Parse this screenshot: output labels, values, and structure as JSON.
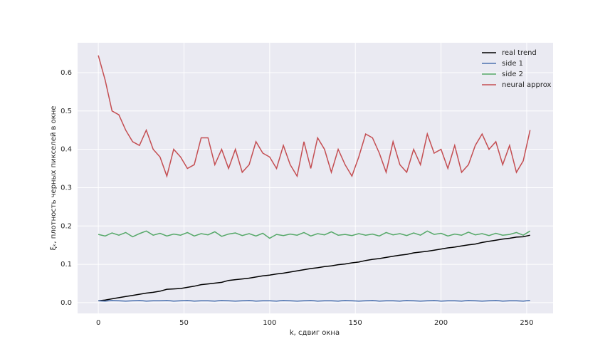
{
  "chart_data": {
    "type": "line",
    "xlabel": "k, сдвиг окна",
    "ylabel": "ξₖ, плотность черных пикселей в окне",
    "x": [
      0,
      4,
      8,
      12,
      16,
      20,
      24,
      28,
      32,
      36,
      40,
      44,
      48,
      52,
      56,
      60,
      64,
      68,
      72,
      76,
      80,
      84,
      88,
      92,
      96,
      100,
      104,
      108,
      112,
      116,
      120,
      124,
      128,
      132,
      136,
      140,
      144,
      148,
      152,
      156,
      160,
      164,
      168,
      172,
      176,
      180,
      184,
      188,
      192,
      196,
      200,
      204,
      208,
      212,
      216,
      220,
      224,
      228,
      232,
      236,
      240,
      244,
      248,
      252
    ],
    "series": [
      {
        "name": "real trend",
        "color": "#000000",
        "values": [
          0.005,
          0.007,
          0.01,
          0.013,
          0.016,
          0.019,
          0.022,
          0.025,
          0.027,
          0.03,
          0.035,
          0.036,
          0.037,
          0.04,
          0.043,
          0.047,
          0.049,
          0.051,
          0.053,
          0.058,
          0.06,
          0.062,
          0.064,
          0.067,
          0.07,
          0.072,
          0.075,
          0.077,
          0.08,
          0.083,
          0.086,
          0.089,
          0.091,
          0.094,
          0.096,
          0.099,
          0.101,
          0.104,
          0.106,
          0.11,
          0.113,
          0.115,
          0.118,
          0.121,
          0.124,
          0.126,
          0.13,
          0.132,
          0.134,
          0.137,
          0.14,
          0.143,
          0.145,
          0.148,
          0.151,
          0.153,
          0.157,
          0.16,
          0.163,
          0.166,
          0.168,
          0.171,
          0.172,
          0.176
        ]
      },
      {
        "name": "side 1",
        "color": "#4c72b0",
        "values": [
          0.005,
          0.004,
          0.006,
          0.005,
          0.004,
          0.005,
          0.006,
          0.004,
          0.005,
          0.005,
          0.006,
          0.004,
          0.005,
          0.006,
          0.004,
          0.005,
          0.005,
          0.004,
          0.006,
          0.005,
          0.004,
          0.005,
          0.006,
          0.004,
          0.005,
          0.005,
          0.004,
          0.006,
          0.005,
          0.004,
          0.005,
          0.006,
          0.004,
          0.005,
          0.005,
          0.004,
          0.006,
          0.005,
          0.004,
          0.005,
          0.006,
          0.004,
          0.005,
          0.005,
          0.004,
          0.006,
          0.005,
          0.004,
          0.005,
          0.006,
          0.004,
          0.005,
          0.005,
          0.004,
          0.006,
          0.005,
          0.004,
          0.005,
          0.006,
          0.004,
          0.005,
          0.005,
          0.004,
          0.006
        ]
      },
      {
        "name": "side 2",
        "color": "#55a868",
        "values": [
          0.178,
          0.174,
          0.182,
          0.176,
          0.183,
          0.172,
          0.18,
          0.187,
          0.176,
          0.181,
          0.174,
          0.179,
          0.176,
          0.183,
          0.174,
          0.18,
          0.177,
          0.185,
          0.173,
          0.179,
          0.182,
          0.175,
          0.18,
          0.174,
          0.181,
          0.168,
          0.178,
          0.175,
          0.179,
          0.176,
          0.183,
          0.174,
          0.18,
          0.177,
          0.185,
          0.176,
          0.178,
          0.175,
          0.18,
          0.176,
          0.179,
          0.174,
          0.183,
          0.177,
          0.18,
          0.175,
          0.182,
          0.176,
          0.187,
          0.178,
          0.181,
          0.174,
          0.179,
          0.176,
          0.184,
          0.177,
          0.18,
          0.175,
          0.181,
          0.176,
          0.178,
          0.183,
          0.176,
          0.187
        ]
      },
      {
        "name": "neural approx",
        "color": "#c44e52",
        "values": [
          0.645,
          0.58,
          0.5,
          0.49,
          0.45,
          0.42,
          0.41,
          0.45,
          0.4,
          0.38,
          0.33,
          0.4,
          0.38,
          0.35,
          0.36,
          0.43,
          0.43,
          0.36,
          0.4,
          0.35,
          0.4,
          0.34,
          0.36,
          0.42,
          0.39,
          0.38,
          0.35,
          0.41,
          0.36,
          0.33,
          0.42,
          0.35,
          0.43,
          0.4,
          0.34,
          0.4,
          0.36,
          0.33,
          0.38,
          0.44,
          0.43,
          0.39,
          0.34,
          0.42,
          0.36,
          0.34,
          0.4,
          0.36,
          0.44,
          0.39,
          0.4,
          0.35,
          0.41,
          0.34,
          0.36,
          0.41,
          0.44,
          0.4,
          0.42,
          0.36,
          0.41,
          0.34,
          0.37,
          0.45
        ]
      }
    ],
    "xlim": [
      -12.1,
      265.4
    ],
    "ylim": [
      -0.028,
      0.678
    ],
    "xticks": [
      0,
      50,
      100,
      150,
      200,
      250
    ],
    "yticks": [
      {
        "value": 0,
        "label": "0.0"
      },
      0.1,
      0.2,
      0.3,
      0.4,
      0.5,
      0.6
    ],
    "grid": true,
    "legend": "upper right"
  }
}
